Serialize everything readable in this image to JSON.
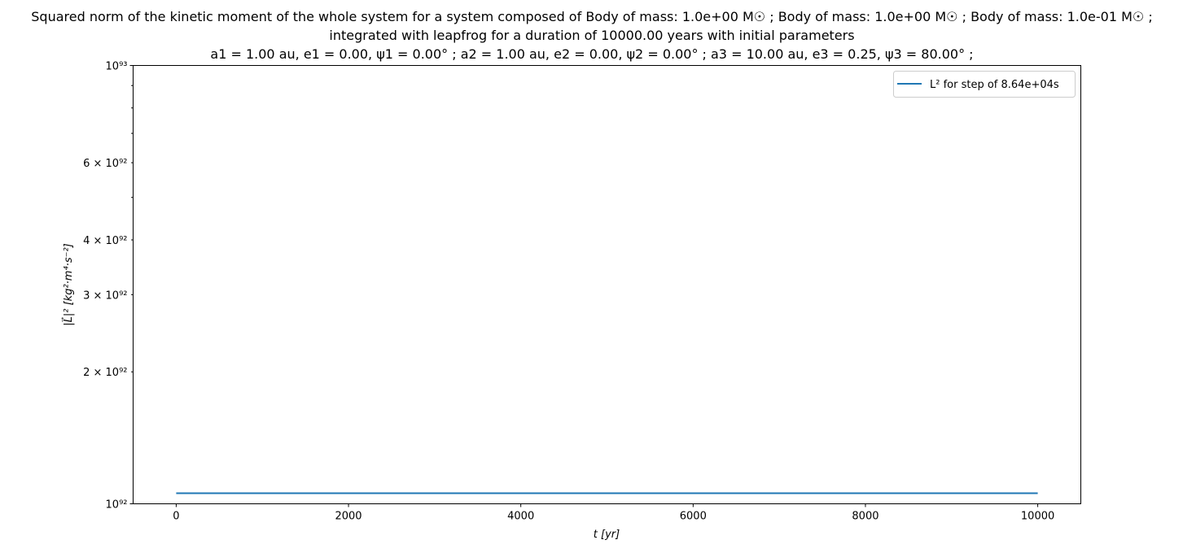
{
  "chart_data": {
    "type": "line",
    "title": [
      "Squared norm of the kinetic moment of the whole system for a system composed of Body of mass: 1.0e+00 M☉ ; Body of mass: 1.0e+00 M☉ ; Body of mass: 1.0e-01 M☉ ;",
      "integrated with leapfrog for a duration of 10000.00 years with initial parameters",
      "a1 = 1.00 au, e1 = 0.00, ψ1 = 0.00° ; a2 = 1.00 au, e2 = 0.00, ψ2 = 0.00° ; a3 = 10.00 au, e3 = 0.25, ψ3 = 80.00° ;"
    ],
    "xlabel": "t [yr]",
    "ylabel": "|L⃗|² [kg²·m⁴·s⁻²]",
    "xlim": [
      -500,
      10500
    ],
    "ylim": [
      1e+92,
      1e+93
    ],
    "yscale": "log",
    "grid": false,
    "legend_placement": "top-right",
    "x_ticks": [
      0,
      2000,
      4000,
      6000,
      8000,
      10000
    ],
    "x_tick_labels": [
      "0",
      "2000",
      "4000",
      "6000",
      "8000",
      "10000"
    ],
    "y_major_ticks": [
      1e+92,
      1e+93
    ],
    "y_major_labels": [
      "10⁹²",
      "10⁹³"
    ],
    "y_minor_labeled_ticks": [
      2e+92,
      3e+92,
      4e+92,
      6e+92
    ],
    "y_minor_labels": [
      "2 × 10⁹²",
      "3 × 10⁹²",
      "4 × 10⁹²",
      "6 × 10⁹²"
    ],
    "y_minor_unlabeled_ticks": [
      5e+92,
      7e+92,
      8e+92,
      9e+92
    ],
    "series": [
      {
        "name": "L² for step of 8.64e+04s",
        "color": "#1f77b4",
        "x": [
          0,
          10000
        ],
        "y": [
          1.057e+92,
          1.057e+92
        ]
      }
    ]
  }
}
